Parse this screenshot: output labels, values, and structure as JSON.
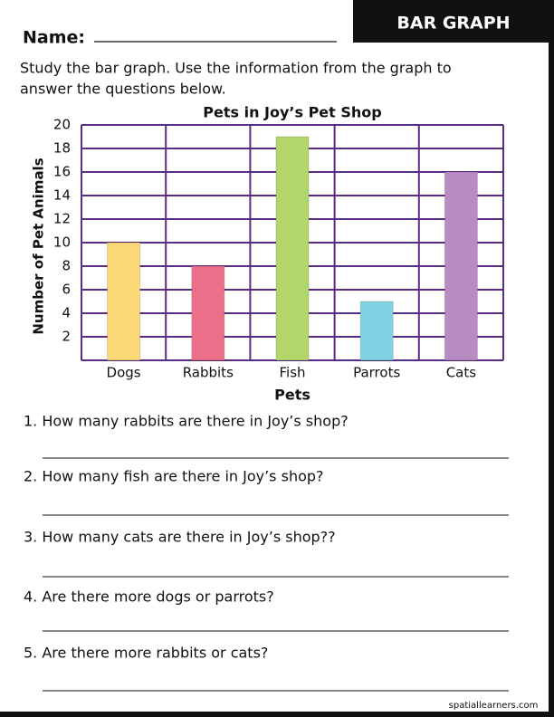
{
  "header": {
    "name_label": "Name:",
    "badge": "BAR GRAPH"
  },
  "instructions": [
    "Study the bar graph. Use the information from the graph to",
    "answer the questions below."
  ],
  "chart_data": {
    "type": "bar",
    "title": "Pets in Joy’s Pet Shop",
    "x_label": "Pets",
    "y_label": "Number of Pet Animals",
    "categories": [
      "Dogs",
      "Rabbits",
      "Fish",
      "Parrots",
      "Cats"
    ],
    "values": [
      10,
      8,
      19,
      5,
      16
    ],
    "colors": [
      "#fcd977",
      "#ec6f8a",
      "#b2d66a",
      "#80d3e3",
      "#b98bc3"
    ],
    "ylim": [
      0,
      20
    ],
    "yticks": [
      2,
      4,
      6,
      8,
      10,
      12,
      14,
      16,
      18,
      20
    ],
    "grid": true,
    "grid_color": "#5b2c82"
  },
  "questions": [
    "1. How many rabbits are there in Joy’s shop?",
    "2. How many fish are there in Joy’s shop?",
    "3. How many cats are there in Joy’s shop??",
    "4. Are there more dogs or parrots?",
    "5. Are there more rabbits or cats?"
  ],
  "footer": "spatiallearners.com"
}
